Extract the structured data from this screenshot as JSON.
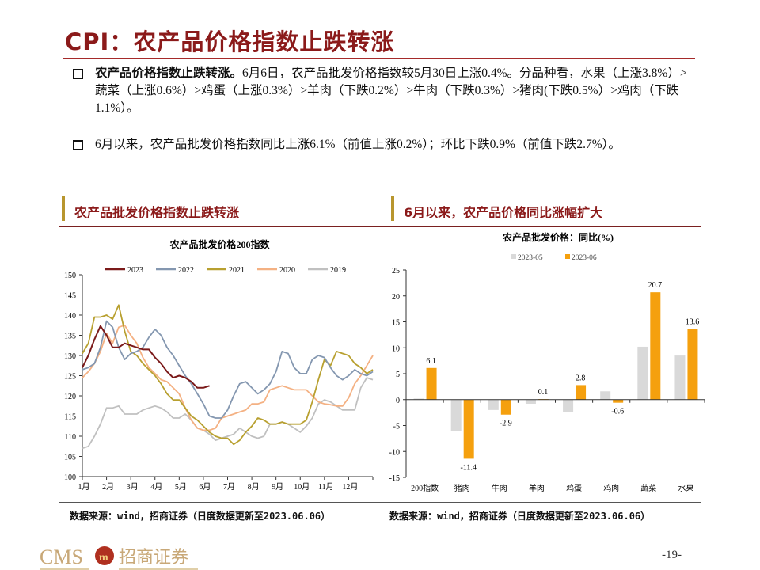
{
  "title": "CPI：农产品价格指数止跌转涨",
  "bullets": [
    {
      "bold": "农产品价格指数止跌转涨。",
      "text": "6月6日，农产品批发价格指数较5月30日上涨0.4%。分品种看，水果（上涨3.8%）>蔬菜（上涨0.6%）>鸡蛋（上涨0.3%）>羊肉（下跌0.2%）>牛肉（下跌0.3%）>猪肉(下跌0.5%）>鸡肉（下跌1.1%）。"
    },
    {
      "bold": "",
      "text": "6月以来，农产品批发价格指数同比上涨6.1%（前值上涨0.2%）；环比下跌0.9%（前值下跌2.7%）。"
    }
  ],
  "sections": [
    {
      "heading": "农产品批发价格指数止跌转涨",
      "source": "数据来源：wind，招商证券（日度数据更新至2023.06.06）"
    },
    {
      "heading": "6月以来，农产品价格同比涨幅扩大",
      "source": "数据来源：wind，招商证券（日度数据更新至2023.06.06）"
    }
  ],
  "footer": {
    "logo_text": "CMS 招商证券",
    "page_number": "-19-"
  },
  "colors": {
    "title": "#8b1a1a",
    "accent_bar": "#b8962e"
  },
  "chart_data": [
    {
      "type": "line",
      "title": "农产品批发价格200指数",
      "ylim": [
        100,
        150
      ],
      "yticks": [
        100,
        105,
        110,
        115,
        120,
        125,
        130,
        135,
        140,
        145,
        150
      ],
      "xlim": [
        1,
        13
      ],
      "xtick_labels": [
        "1月",
        "2月",
        "3月",
        "4月",
        "5月",
        "6月",
        "7月",
        "8月",
        "9月",
        "10月",
        "11月",
        "12月"
      ],
      "legend": "top",
      "grid": false,
      "x": [
        1,
        1.25,
        1.5,
        1.75,
        2,
        2.25,
        2.5,
        2.75,
        3,
        3.25,
        3.5,
        3.75,
        4,
        4.25,
        4.5,
        4.75,
        5,
        5.25,
        5.5,
        5.75,
        6,
        6.25,
        6.5,
        6.75,
        7,
        7.25,
        7.5,
        7.75,
        8,
        8.25,
        8.5,
        8.75,
        9,
        9.25,
        9.5,
        9.75,
        10,
        10.25,
        10.5,
        10.75,
        11,
        11.25,
        11.5,
        11.75,
        12,
        12.25,
        12.5,
        12.75,
        13
      ],
      "series": [
        {
          "name": "2023",
          "color": "#7b1a1a",
          "values": [
            127,
            130,
            134,
            137.3,
            135,
            132,
            132,
            133,
            132.5,
            132,
            131.5,
            131.5,
            129.5,
            128,
            126,
            124.5,
            125,
            124.5,
            123.5,
            122,
            122,
            122.5,
            null,
            null,
            null,
            null,
            null,
            null,
            null,
            null,
            null,
            null,
            null,
            null,
            null,
            null,
            null,
            null,
            null,
            null,
            null,
            null,
            null,
            null,
            null,
            null,
            null,
            null,
            null
          ]
        },
        {
          "name": "2022",
          "color": "#8497b0",
          "values": [
            126.5,
            127,
            128,
            132,
            138.5,
            137,
            132,
            129,
            130.5,
            131,
            132,
            134.5,
            136.5,
            135,
            132,
            130,
            127.5,
            125,
            123,
            120.5,
            118,
            115,
            114.5,
            114.5,
            116.5,
            120,
            123,
            123.5,
            122,
            120.5,
            121.5,
            123,
            126,
            131,
            130.5,
            127,
            125.5,
            125.5,
            129,
            130,
            129.5,
            127,
            125,
            124,
            125,
            126.5,
            125.5,
            125,
            126
          ]
        },
        {
          "name": "2021",
          "color": "#b8a030",
          "values": [
            130.5,
            133,
            139.5,
            139.5,
            140,
            139,
            142.5,
            136,
            131,
            130,
            128,
            126.5,
            125,
            123,
            120.5,
            119,
            119,
            117,
            115,
            114,
            112.5,
            111,
            110,
            109.5,
            109.5,
            108,
            109,
            111,
            112.5,
            114.5,
            114,
            113,
            113,
            113.5,
            113,
            113,
            113,
            114,
            118.5,
            124,
            129,
            127.5,
            131,
            130.5,
            130,
            128,
            127,
            125.5,
            126.5
          ]
        },
        {
          "name": "2020",
          "color": "#f4b183",
          "values": [
            124.5,
            126,
            128,
            131,
            135.5,
            133,
            137,
            137.5,
            135,
            133,
            129.5,
            127,
            125.5,
            124,
            123.5,
            122,
            120.5,
            117,
            114,
            112,
            111.5,
            111.5,
            112,
            114.5,
            115,
            115.5,
            116,
            116.5,
            118,
            118,
            118.5,
            121.5,
            122,
            122.5,
            122,
            121.5,
            121.5,
            121.5,
            120,
            118.5,
            118,
            117.8,
            117.5,
            117.5,
            119.5,
            123,
            125,
            127.5,
            130
          ]
        },
        {
          "name": "2019",
          "color": "#c0c0c0",
          "values": [
            107,
            107.5,
            110,
            113,
            117,
            117,
            117.5,
            115.5,
            115.5,
            115.5,
            116.5,
            117,
            117.5,
            117,
            116,
            114.5,
            114.5,
            115.5,
            114,
            112,
            111.5,
            110.5,
            109,
            109.5,
            110,
            110.5,
            112,
            111,
            110,
            109.5,
            110,
            113,
            113,
            113.5,
            113,
            112,
            111,
            112.5,
            114.5,
            118,
            119,
            118.5,
            117.5,
            116.5,
            116.5,
            116.5,
            122,
            124.5,
            124
          ]
        }
      ]
    },
    {
      "type": "bar",
      "title": "农产品批发价格：同比(%)",
      "ylim": [
        -15,
        25
      ],
      "yticks": [
        -15,
        -10,
        -5,
        0,
        5,
        10,
        15,
        20,
        25
      ],
      "legend": "top",
      "grid": false,
      "categories": [
        "200指数",
        "猪肉",
        "牛肉",
        "羊肉",
        "鸡蛋",
        "鸡肉",
        "蔬菜",
        "水果"
      ],
      "series": [
        {
          "name": "2023-05",
          "color": "#d9d9d9",
          "values": [
            0.2,
            -6.1,
            -2.0,
            -0.8,
            -2.4,
            1.6,
            10.2,
            8.5
          ]
        },
        {
          "name": "2023-06",
          "color": "#f5a00e",
          "values": [
            6.1,
            -11.4,
            -2.9,
            0.1,
            2.8,
            -0.6,
            20.7,
            13.6
          ],
          "data_labels": [
            "6.1",
            "-11.4",
            "-2.9",
            "0.1",
            "2.8",
            "-0.6",
            "20.7",
            "13.6"
          ]
        }
      ]
    }
  ]
}
